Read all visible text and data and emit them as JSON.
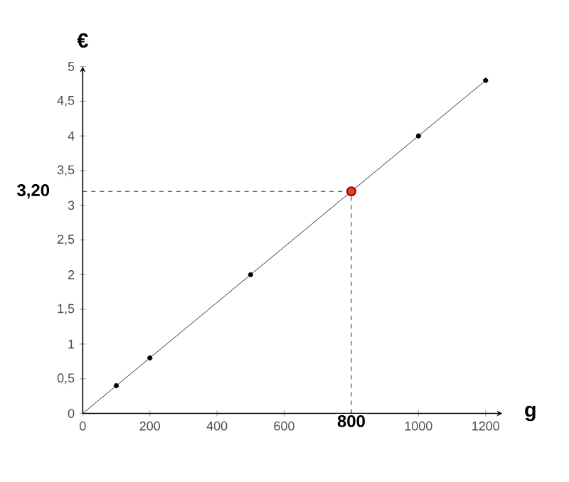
{
  "chart_data": {
    "type": "line",
    "xlabel": "g",
    "ylabel": "€",
    "xlim": [
      0,
      1250
    ],
    "ylim": [
      0,
      5
    ],
    "xticks": [
      0,
      200,
      400,
      600,
      {
        "value": 800,
        "label": null
      },
      1000,
      1200
    ],
    "yticks": [
      0,
      {
        "value": 0.5,
        "label": "0,5"
      },
      1,
      {
        "value": 1.5,
        "label": "1,5"
      },
      2,
      {
        "value": 2.5,
        "label": "2,5"
      },
      3,
      {
        "value": 3.5,
        "label": "3,5"
      },
      4,
      {
        "value": 4.5,
        "label": "4,5"
      },
      5
    ],
    "grid": false,
    "series": [
      {
        "color": "#000000",
        "x": [
          0,
          1200
        ],
        "values": [
          0,
          4.8
        ],
        "marker": "none"
      },
      {
        "type": "scatter",
        "color": "#000000",
        "x": [
          100,
          200,
          500,
          1000,
          1200
        ],
        "values": [
          0.4,
          0.8,
          2,
          4,
          4.8
        ],
        "marker": "circle"
      },
      {
        "type": "scatter",
        "color": "#e0402a",
        "x": [
          800
        ],
        "values": [
          3.2
        ],
        "marker": "circle"
      }
    ],
    "ref_lines": [
      {
        "axis": "x",
        "value": 800,
        "label": "800",
        "line_style": "dashed"
      },
      {
        "axis": "y",
        "value": 3.2,
        "label": "3,20",
        "line_style": "dashed"
      }
    ]
  }
}
